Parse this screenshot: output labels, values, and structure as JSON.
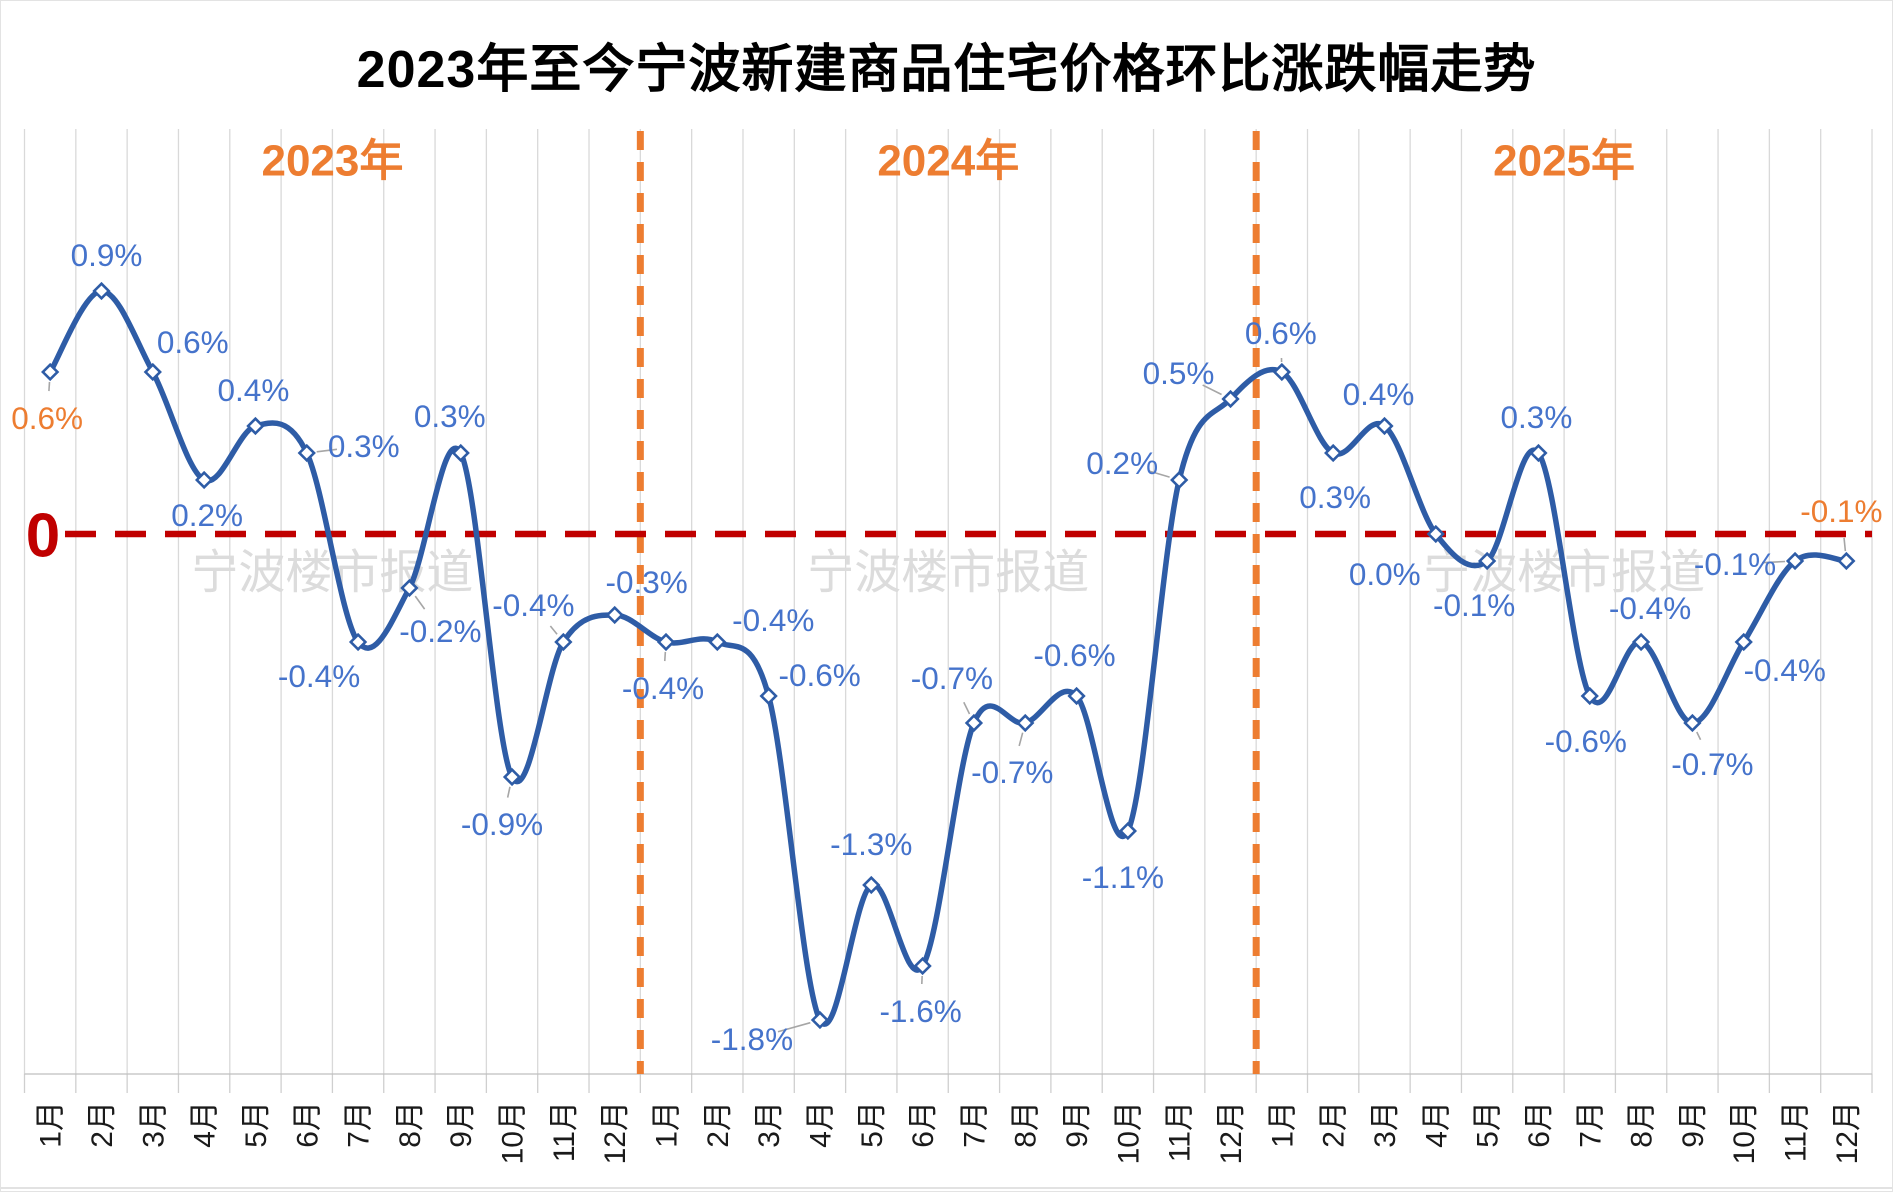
{
  "page": {
    "title": "2023年至今宁波新建商品住宅价格环比涨跌幅走势"
  },
  "watermark": {
    "text": "宁波楼市报道"
  },
  "axis": {
    "zero_label": "0"
  },
  "colors": {
    "line": "#2E5CA6",
    "marker_fill": "#FFFFFF",
    "data_label": "#4573CB",
    "highlight_label": "#ED7D31",
    "year_label": "#ED7D31",
    "divider": "#ED7D31",
    "zero_line": "#C00000",
    "zero_label_color": "#C00000",
    "gridline": "#D9D9D9",
    "tick": "#CFCFCF",
    "axis_line": "#BFBFBF",
    "watermark": "#DCDCDC",
    "month_label": "#1A1A1A",
    "leader": "#A6A6A6",
    "title": "#000000"
  },
  "chart_data": {
    "type": "line",
    "title": "2023年至今宁波新建商品住宅价格环比涨跌幅走势",
    "unit": "%",
    "ylim": [
      -2.0,
      1.5
    ],
    "zero_baseline": 0,
    "smooth": true,
    "grid": "vertical-monthly",
    "legend_position": "none",
    "month_labels": [
      "1月",
      "2月",
      "3月",
      "4月",
      "5月",
      "6月",
      "7月",
      "8月",
      "9月",
      "10月",
      "11月",
      "12月"
    ],
    "years": [
      {
        "label": "2023年",
        "values": [
          0.6,
          0.9,
          0.6,
          0.2,
          0.4,
          0.3,
          -0.4,
          -0.2,
          0.3,
          -0.9,
          -0.4,
          -0.3
        ],
        "point_labels": [
          "0.6%",
          "0.9%",
          "0.6%",
          "0.2%",
          "0.4%",
          "0.3%",
          "-0.4%",
          "-0.2%",
          "0.3%",
          "-0.9%",
          "-0.4%",
          "-0.3%"
        ]
      },
      {
        "label": "2024年",
        "values": [
          -0.4,
          -0.4,
          -0.6,
          -1.8,
          -1.3,
          -1.6,
          -0.7,
          -0.7,
          -0.6,
          -1.1,
          0.2,
          0.5
        ],
        "point_labels": [
          "-0.4%",
          "-0.4%",
          "-0.6%",
          "-1.8%",
          "-1.3%",
          "-1.6%",
          "-0.7%",
          "-0.7%",
          "-0.6%",
          "-1.1%",
          "0.2%",
          "0.5%"
        ]
      },
      {
        "label": "2025年",
        "values": [
          0.6,
          0.3,
          0.4,
          0.0,
          -0.1,
          0.3,
          -0.6,
          -0.4,
          -0.7,
          -0.4,
          -0.1,
          -0.1
        ],
        "point_labels": [
          "0.6%",
          "0.3%",
          "0.4%",
          "0.0%",
          "-0.1%",
          "0.3%",
          "-0.6%",
          "-0.4%",
          "-0.7%",
          "-0.4%",
          "-0.1%",
          "-0.1%"
        ]
      }
    ],
    "highlighted_point_indices": [
      0,
      35
    ]
  }
}
